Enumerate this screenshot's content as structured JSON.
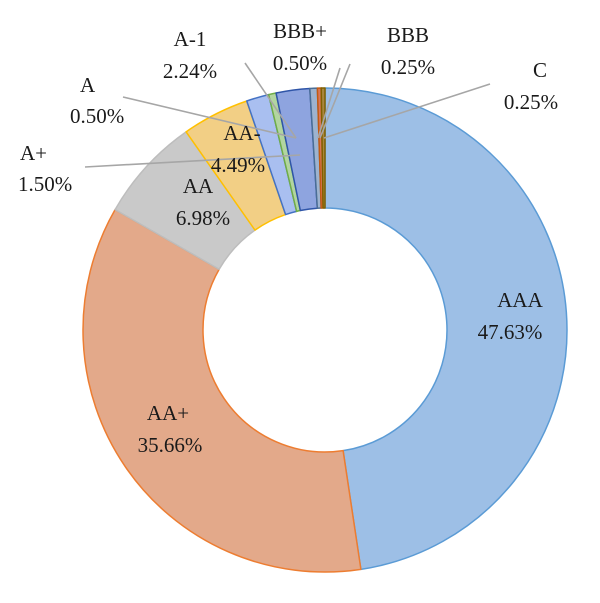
{
  "chart_data": {
    "type": "pie",
    "variant": "donut",
    "categories": [
      "AAA",
      "AA+",
      "AA",
      "AA-",
      "A+",
      "A",
      "A-1",
      "BBB+",
      "BBB",
      "C"
    ],
    "values": [
      47.63,
      35.66,
      6.98,
      4.49,
      1.5,
      0.5,
      2.24,
      0.5,
      0.25,
      0.25
    ],
    "value_labels": [
      "47.63%",
      "35.66%",
      "6.98%",
      "4.49%",
      "1.50%",
      "0.50%",
      "2.24%",
      "0.50%",
      "0.25%",
      "0.25%"
    ],
    "colors": [
      "#9dbfe6",
      "#e3a98a",
      "#c9c9c9",
      "#f2cf85",
      "#a9bff0",
      "#b2d5a0",
      "#8ea4df",
      "#9db3cf",
      "#d9785a",
      "#a8863e"
    ],
    "edge_colors": [
      "#5b9bd5",
      "#ed7d31",
      "#bdbdbd",
      "#ffc000",
      "#4472c4",
      "#70ad47",
      "#2f55a8",
      "#4a6d96",
      "#c55a11",
      "#7f6000"
    ],
    "start_angle_deg": 90,
    "direction": "clockwise",
    "legend": "none",
    "title": ""
  }
}
